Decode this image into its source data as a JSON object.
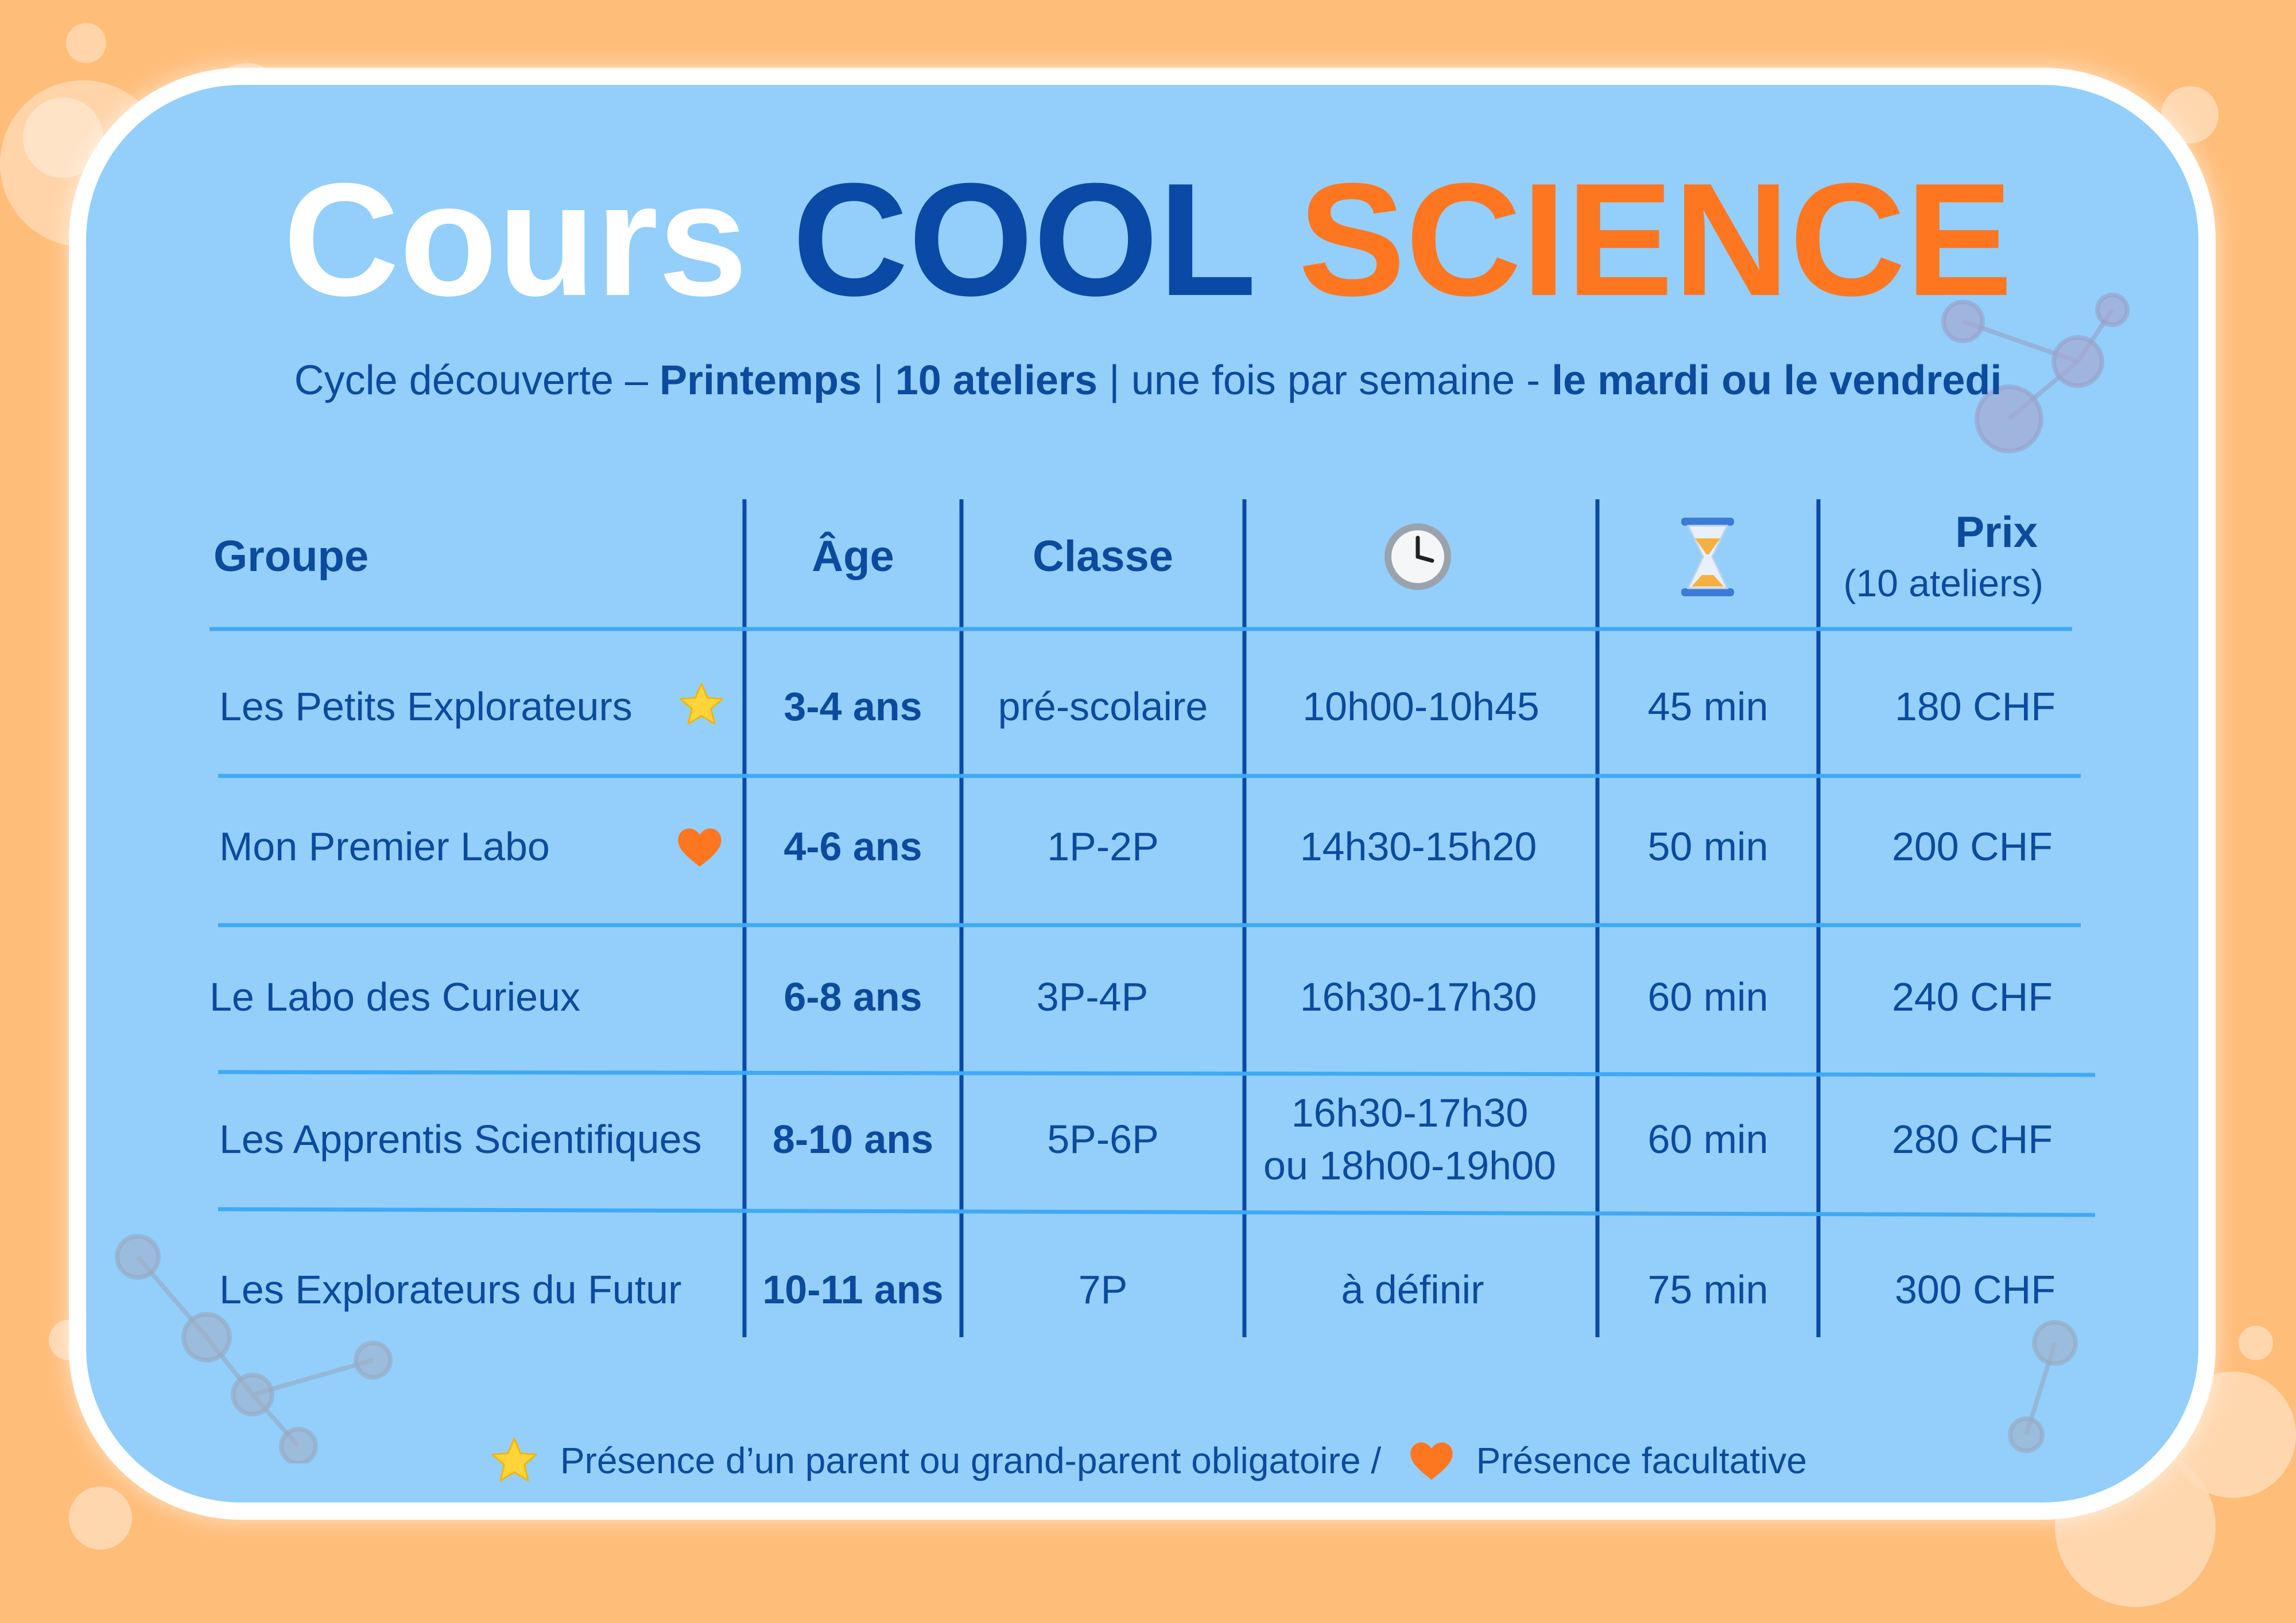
{
  "title": {
    "part1": "Cours",
    "part2": "COOL",
    "part3": "SCIENCE"
  },
  "subtitle": {
    "lead": "Cycle découverte – ",
    "season": "Printemps",
    "sep1": " | ",
    "count": "10 ateliers",
    "sep2": " | une fois par semaine - ",
    "days": "le mardi ou le vendredi"
  },
  "table": {
    "headers": {
      "group": "Groupe",
      "age": "Âge",
      "class": "Classe",
      "time_icon": "clock-icon",
      "duration_icon": "hourglass-icon",
      "price": "Prix",
      "price_sub": "(10 ateliers)"
    },
    "rows": [
      {
        "group": "Les Petits Explorateurs",
        "marker": "star-icon",
        "age": "3-4 ans",
        "class": "pré-scolaire",
        "time": "10h00-10h45",
        "duration": "45 min",
        "price": "180 CHF"
      },
      {
        "group": "Mon Premier Labo",
        "marker": "heart-icon",
        "age": "4-6 ans",
        "class": "1P-2P",
        "time": "14h30-15h20",
        "duration": "50 min",
        "price": "200 CHF"
      },
      {
        "group": "Le Labo des Curieux",
        "age": "6-8 ans",
        "class": "3P-4P",
        "time": "16h30-17h30",
        "duration": "60 min",
        "price": "240 CHF"
      },
      {
        "group": "Les Apprentis Scientifiques",
        "age": "8-10 ans",
        "class": "5P-6P",
        "time": "16h30-17h30",
        "time2": "ou 18h00-19h00",
        "duration": "60 min",
        "price": "280 CHF"
      },
      {
        "group": "Les Explorateurs du Futur",
        "age": "10-11 ans",
        "class": "7P",
        "time": "à définir",
        "duration": "75 min",
        "price": "300 CHF"
      }
    ]
  },
  "footer": {
    "star_note": "Présence d’un parent ou grand-parent obligatoire /",
    "heart_note": "Présence facultative"
  },
  "colors": {
    "background": "#ffbd7a",
    "card": "#93cffa",
    "navy": "#0a4aa6",
    "orange": "#ff7620",
    "divider": "#3fa9f5"
  }
}
